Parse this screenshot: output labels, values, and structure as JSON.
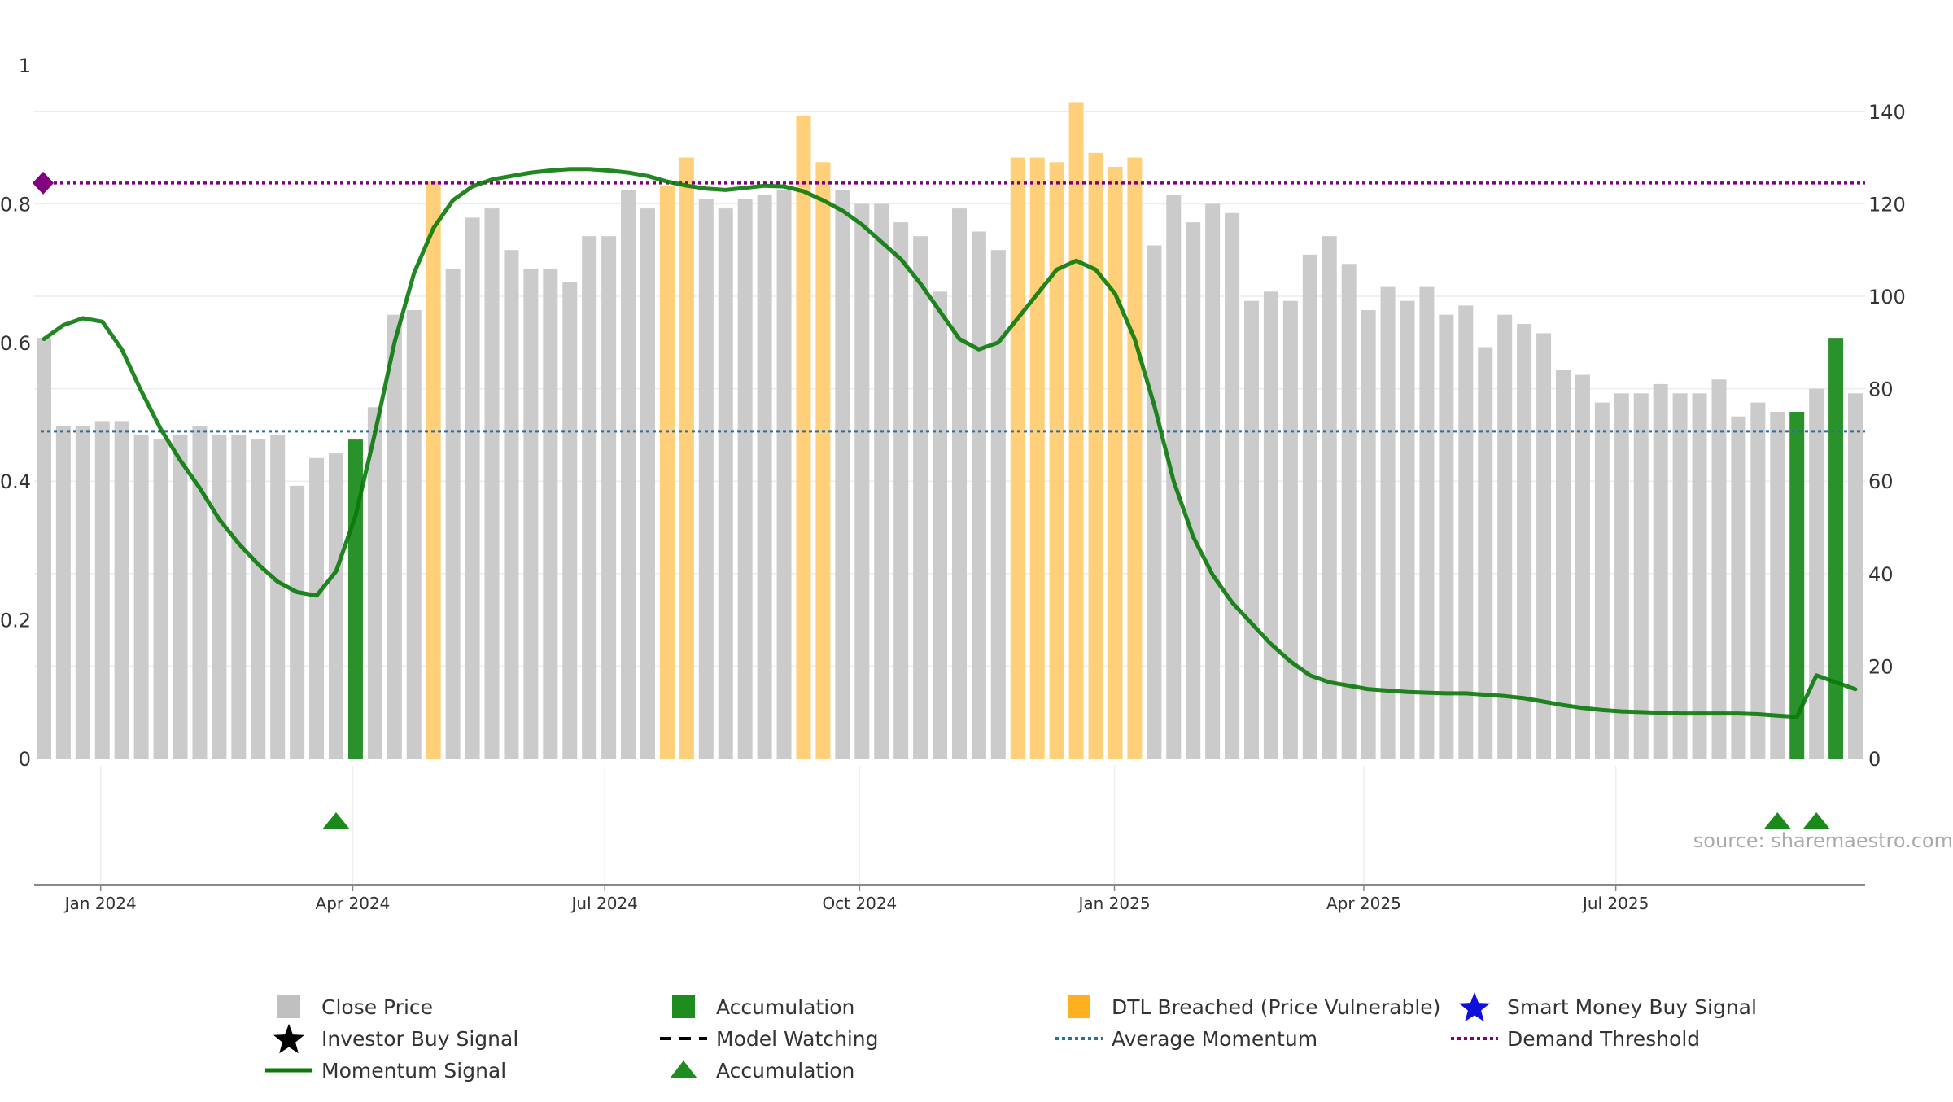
{
  "chart_data": {
    "type": "bar",
    "source": "source: sharemaestro.com",
    "left_axis": {
      "ticks": [
        "0",
        "0.2",
        "0.4",
        "0.6",
        "0.8",
        "1"
      ],
      "range": [
        0,
        1
      ]
    },
    "right_axis": {
      "ticks": [
        "0",
        "20",
        "40",
        "60",
        "80",
        "100",
        "120",
        "140"
      ],
      "range": [
        0,
        150
      ]
    },
    "x_axis": {
      "ticks": [
        {
          "label": "Jan 2024",
          "date": "2024-01-01"
        },
        {
          "label": "Apr 2024",
          "date": "2024-04-01"
        },
        {
          "label": "Jul 2024",
          "date": "2024-07-01"
        },
        {
          "label": "Oct 2024",
          "date": "2024-10-01"
        },
        {
          "label": "Jan 2025",
          "date": "2025-01-01"
        },
        {
          "label": "Apr 2025",
          "date": "2025-04-01"
        },
        {
          "label": "Jul 2025",
          "date": "2025-07-01"
        }
      ],
      "range": [
        "2023-12-08",
        "2025-09-29"
      ]
    },
    "series": [
      {
        "name": "Close Price",
        "color": "#c8c8c8"
      },
      {
        "name": "Accumulation",
        "color": "#1e8c1e"
      },
      {
        "name": "DTL Breached (Price Vulnerable)",
        "color": "#ffc864"
      },
      {
        "name": "Momentum Signal",
        "color": "#0a7a0a"
      },
      {
        "name": "Average Momentum",
        "color": "#2c6e9c",
        "value": 0.472
      },
      {
        "name": "Demand Threshold",
        "color": "#800080",
        "value": 0.83
      }
    ],
    "dates": [
      "2023-12-11",
      "2023-12-18",
      "2023-12-25",
      "2024-01-01",
      "2024-01-08",
      "2024-01-15",
      "2024-01-22",
      "2024-01-29",
      "2024-02-05",
      "2024-02-12",
      "2024-02-19",
      "2024-02-26",
      "2024-03-04",
      "2024-03-11",
      "2024-03-18",
      "2024-03-25",
      "2024-04-01",
      "2024-04-08",
      "2024-04-15",
      "2024-04-22",
      "2024-04-29",
      "2024-05-06",
      "2024-05-13",
      "2024-05-20",
      "2024-05-27",
      "2024-06-03",
      "2024-06-10",
      "2024-06-17",
      "2024-06-24",
      "2024-07-01",
      "2024-07-08",
      "2024-07-15",
      "2024-07-22",
      "2024-07-29",
      "2024-08-05",
      "2024-08-12",
      "2024-08-19",
      "2024-08-26",
      "2024-09-02",
      "2024-09-09",
      "2024-09-16",
      "2024-09-23",
      "2024-09-30",
      "2024-10-07",
      "2024-10-14",
      "2024-10-21",
      "2024-10-28",
      "2024-11-04",
      "2024-11-11",
      "2024-11-18",
      "2024-11-25",
      "2024-12-02",
      "2024-12-09",
      "2024-12-16",
      "2024-12-23",
      "2024-12-30",
      "2025-01-06",
      "2025-01-13",
      "2025-01-20",
      "2025-01-27",
      "2025-02-03",
      "2025-02-10",
      "2025-02-17",
      "2025-02-24",
      "2025-03-03",
      "2025-03-10",
      "2025-03-17",
      "2025-03-24",
      "2025-03-31",
      "2025-04-07",
      "2025-04-14",
      "2025-04-21",
      "2025-04-28",
      "2025-05-05",
      "2025-05-12",
      "2025-05-19",
      "2025-05-26",
      "2025-06-02",
      "2025-06-09",
      "2025-06-16",
      "2025-06-23",
      "2025-06-30",
      "2025-07-07",
      "2025-07-14",
      "2025-07-21",
      "2025-07-28",
      "2025-08-04",
      "2025-08-11",
      "2025-08-18",
      "2025-08-25",
      "2025-09-01",
      "2025-09-08",
      "2025-09-15",
      "2025-09-22"
    ],
    "close_price": [
      91,
      72,
      72,
      73,
      73,
      70,
      69,
      70,
      72,
      70,
      70,
      69,
      70,
      59,
      65,
      66,
      69,
      76,
      96,
      97,
      125,
      106,
      117,
      119,
      110,
      106,
      106,
      103,
      113,
      113,
      123,
      119,
      124,
      130,
      121,
      119,
      121,
      122,
      123,
      139,
      129,
      123,
      120,
      120,
      116,
      113,
      101,
      119,
      114,
      110,
      130,
      130,
      129,
      142,
      131,
      128,
      130,
      111,
      122,
      116,
      120,
      118,
      99,
      101,
      99,
      109,
      113,
      107,
      97,
      102,
      99,
      102,
      96,
      98,
      89,
      96,
      94,
      92,
      84,
      83,
      77,
      79,
      79,
      81,
      79,
      79,
      82,
      74,
      77,
      75,
      75,
      80,
      91,
      79
    ],
    "bar_signal": [
      "price",
      "price",
      "price",
      "price",
      "price",
      "price",
      "price",
      "price",
      "price",
      "price",
      "price",
      "price",
      "price",
      "price",
      "price",
      "price",
      "accumulation",
      "price",
      "price",
      "price",
      "dtl",
      "price",
      "price",
      "price",
      "price",
      "price",
      "price",
      "price",
      "price",
      "price",
      "price",
      "price",
      "dtl",
      "dtl",
      "price",
      "price",
      "price",
      "price",
      "price",
      "dtl",
      "dtl",
      "price",
      "price",
      "price",
      "price",
      "price",
      "price",
      "price",
      "price",
      "price",
      "dtl",
      "dtl",
      "dtl",
      "dtl",
      "dtl",
      "dtl",
      "dtl",
      "price",
      "price",
      "price",
      "price",
      "price",
      "price",
      "price",
      "price",
      "price",
      "price",
      "price",
      "price",
      "price",
      "price",
      "price",
      "price",
      "price",
      "price",
      "price",
      "price",
      "price",
      "price",
      "price",
      "price",
      "price",
      "price",
      "price",
      "price",
      "price",
      "price",
      "price",
      "price",
      "price",
      "accumulation",
      "price",
      "accumulation",
      "price"
    ],
    "momentum": [
      0.605,
      0.625,
      0.635,
      0.63,
      0.59,
      0.53,
      0.475,
      0.43,
      0.39,
      0.345,
      0.31,
      0.28,
      0.255,
      0.24,
      0.235,
      0.27,
      0.35,
      0.47,
      0.6,
      0.7,
      0.765,
      0.805,
      0.825,
      0.835,
      0.84,
      0.845,
      0.848,
      0.85,
      0.85,
      0.848,
      0.845,
      0.84,
      0.832,
      0.826,
      0.822,
      0.82,
      0.823,
      0.826,
      0.825,
      0.818,
      0.805,
      0.79,
      0.77,
      0.745,
      0.72,
      0.685,
      0.645,
      0.605,
      0.59,
      0.6,
      0.635,
      0.67,
      0.705,
      0.718,
      0.705,
      0.67,
      0.605,
      0.51,
      0.4,
      0.32,
      0.265,
      0.225,
      0.195,
      0.165,
      0.14,
      0.12,
      0.11,
      0.105,
      0.1,
      0.098,
      0.096,
      0.095,
      0.094,
      0.094,
      0.092,
      0.09,
      0.087,
      0.082,
      0.077,
      0.073,
      0.07,
      0.068,
      0.067,
      0.066,
      0.065,
      0.065,
      0.065,
      0.065,
      0.064,
      0.062,
      0.06,
      0.12,
      0.11,
      0.1
    ],
    "average_momentum": 0.472,
    "demand_threshold": 0.83,
    "accumulation_markers": [
      "2024-03-25",
      "2025-08-25",
      "2025-09-08"
    ]
  },
  "legend": {
    "items": [
      {
        "label": "Close Price",
        "symbol": "square",
        "color": "#c0c0c0"
      },
      {
        "label": "Accumulation",
        "symbol": "square",
        "color": "#1e8c1e"
      },
      {
        "label": "DTL Breached (Price Vulnerable)",
        "symbol": "square",
        "color": "#ffb020"
      },
      {
        "label": "Smart Money Buy Signal",
        "symbol": "star",
        "color": "#1010dd"
      },
      {
        "label": "Investor Buy Signal",
        "symbol": "star",
        "color": "#000000"
      },
      {
        "label": "Model Watching",
        "symbol": "dash",
        "color": "#000000"
      },
      {
        "label": "Average Momentum",
        "symbol": "dot",
        "color": "#2c6e9c"
      },
      {
        "label": "Demand Threshold",
        "symbol": "dot",
        "color": "#800080"
      },
      {
        "label": "Momentum Signal",
        "symbol": "line",
        "color": "#0a7a0a"
      },
      {
        "label": "Accumulation",
        "symbol": "triangle",
        "color": "#1e8c1e"
      }
    ]
  }
}
